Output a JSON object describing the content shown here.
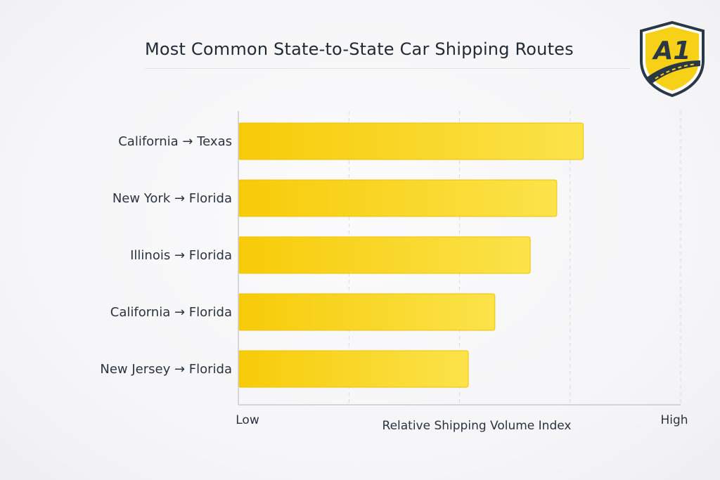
{
  "header": {
    "title": "Most Common State-to-State Car Shipping Routes"
  },
  "logo": {
    "text": "A1",
    "icon": "a1-shield-logo-icon",
    "colors": {
      "shield": "#f7d117",
      "border": "#2a3744",
      "text": "#2a3744"
    }
  },
  "colors": {
    "bar_start": "#f7cb08",
    "bar_end": "#fbe34a",
    "axis": "#c9cbd2",
    "grid": "#d5d7dd",
    "label": "#2a3340"
  },
  "chart_data": {
    "type": "bar",
    "orientation": "horizontal",
    "title": "Most Common State-to-State Car Shipping Routes",
    "xlabel": "Relative Shipping Volume Index",
    "ylabel": "",
    "x_min_label": "Low",
    "x_max_label": "High",
    "xlim": [
      0,
      100
    ],
    "grid": "vertical dashed",
    "categories": [
      "California → Texas",
      "New York → Florida",
      "Illinois → Florida",
      "California → Florida",
      "New Jersey → Florida"
    ],
    "values": [
      78,
      72,
      66,
      58,
      52
    ]
  }
}
